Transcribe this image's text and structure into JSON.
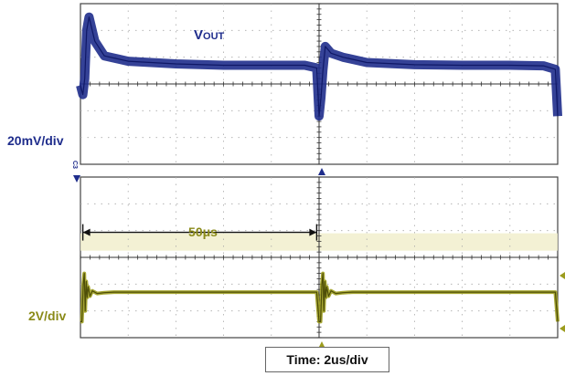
{
  "chart_data": [
    {
      "type": "line",
      "title": "",
      "trace_label": "VOUT",
      "trace_label_main": "V",
      "trace_label_sub": "OUT",
      "scale_label": "20mV/div",
      "channel_marker": "C3",
      "color": "#1f2d8c",
      "xlabel": "",
      "ylabel": "",
      "x_unit": "div",
      "y_unit": "div",
      "xlim": [
        0,
        10
      ],
      "ylim": [
        -3,
        3
      ],
      "grid": true,
      "series": [
        {
          "x": [
            0.0,
            0.05,
            0.09,
            0.13,
            0.18,
            0.3,
            0.5,
            1.0,
            2.0,
            3.0,
            4.0,
            4.7,
            4.95,
            5.0,
            5.04,
            5.08,
            5.13,
            5.25,
            5.5,
            6.0,
            7.0,
            8.0,
            9.0,
            9.7,
            9.95,
            10.0
          ],
          "values": [
            -0.05,
            -0.4,
            0.2,
            2.0,
            2.5,
            1.6,
            1.05,
            0.85,
            0.75,
            0.7,
            0.7,
            0.7,
            0.6,
            -1.2,
            -0.5,
            0.5,
            1.4,
            1.15,
            1.0,
            0.8,
            0.72,
            0.7,
            0.7,
            0.68,
            0.55,
            -1.2
          ]
        }
      ]
    },
    {
      "type": "line",
      "title": "",
      "scale_label": "2V/div",
      "period_label": "50μs",
      "color": "#9c9c1e",
      "xlabel": "",
      "ylabel": "",
      "x_unit": "div",
      "y_unit": "div",
      "xlim": [
        0,
        10
      ],
      "ylim": [
        -3,
        3
      ],
      "grid": true,
      "series": [
        {
          "x": [
            0.0,
            0.03,
            0.06,
            0.08,
            0.1,
            0.12,
            0.14,
            0.16,
            0.2,
            0.25,
            0.35,
            0.5,
            0.7,
            1.0,
            2.0,
            3.0,
            4.0,
            4.95,
            5.0,
            5.03,
            5.06,
            5.08,
            5.1,
            5.12,
            5.14,
            5.16,
            5.2,
            5.25,
            5.35,
            5.5,
            5.7,
            6.0,
            7.0,
            8.0,
            9.0,
            9.95,
            10.0
          ],
          "values": [
            -2.4,
            -2.4,
            -1.0,
            -0.6,
            -2.0,
            -0.9,
            -1.5,
            -1.1,
            -1.45,
            -1.25,
            -1.35,
            -1.32,
            -1.3,
            -1.3,
            -1.3,
            -1.3,
            -1.3,
            -1.3,
            -2.4,
            -2.4,
            -1.0,
            -0.6,
            -2.0,
            -0.9,
            -1.5,
            -1.1,
            -1.45,
            -1.25,
            -1.35,
            -1.32,
            -1.3,
            -1.3,
            -1.3,
            -1.3,
            -1.3,
            -1.3,
            -2.4
          ]
        }
      ]
    }
  ],
  "footer": {
    "time_label": "Time: 2us/div"
  }
}
